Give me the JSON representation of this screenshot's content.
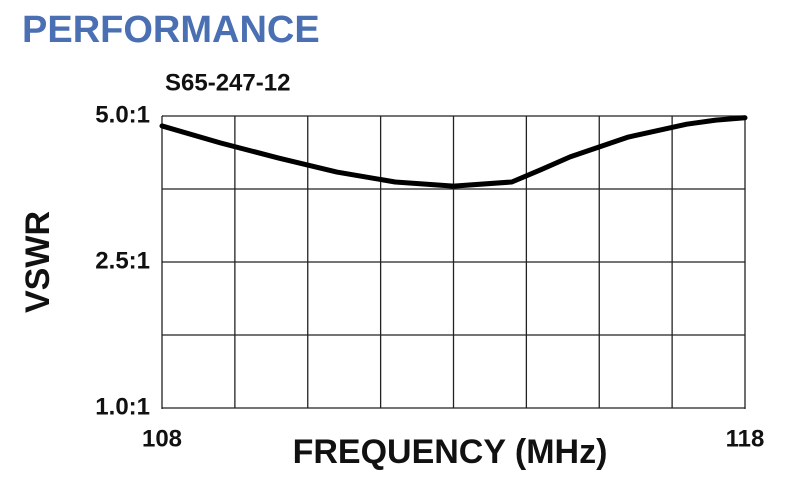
{
  "chart_data": {
    "type": "line",
    "header": "PERFORMANCE",
    "title": "S65-247-12",
    "x_label": "FREQUENCY (MHz)",
    "y_label": "VSWR",
    "x": [
      108,
      109,
      110,
      111,
      112,
      113,
      114,
      114.5,
      115,
      116,
      117,
      117.5,
      118
    ],
    "series": [
      {
        "name": "S65-247-12",
        "color": "#000000",
        "values": [
          4.83,
          4.54,
          4.28,
          4.04,
          3.87,
          3.8,
          3.87,
          4.08,
          4.3,
          4.64,
          4.86,
          4.93,
          4.97
        ]
      }
    ],
    "xlim": [
      108,
      118
    ],
    "xticks": [
      108,
      118
    ],
    "ylim": [
      1,
      5
    ],
    "yticks": [
      {
        "value": 1,
        "label": "1.0:1"
      },
      {
        "value": 2.5,
        "label": "2.5:1"
      },
      {
        "value": 5,
        "label": "5.0:1"
      }
    ],
    "grid": {
      "x_divisions": 8,
      "y_divisions": 4
    }
  }
}
